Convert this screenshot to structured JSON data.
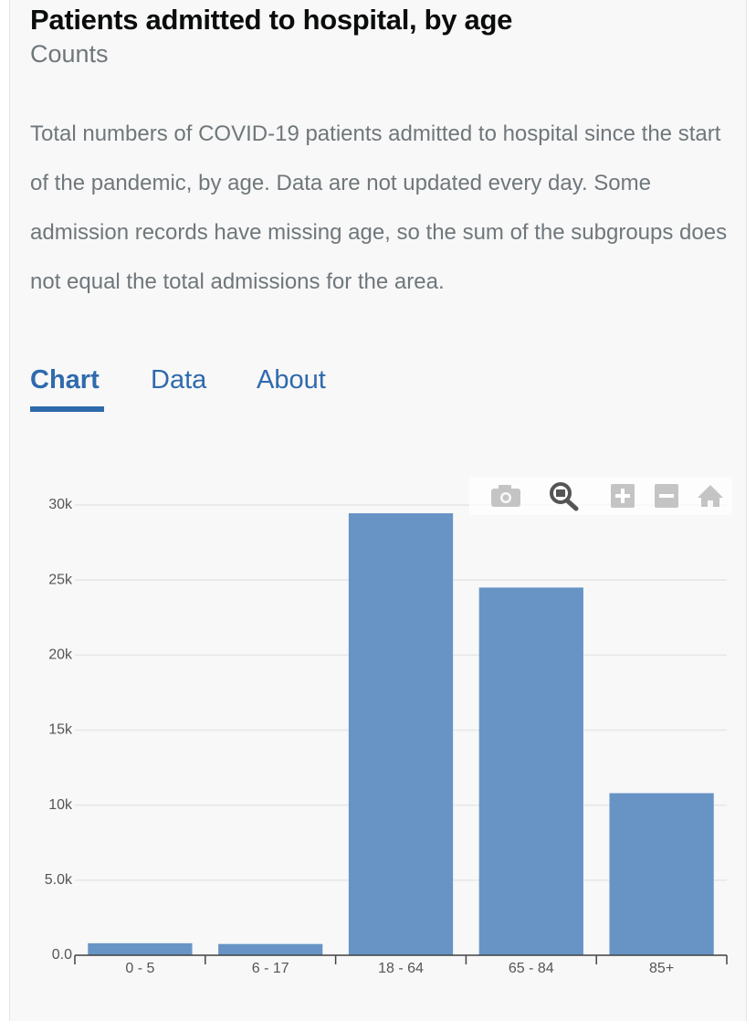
{
  "header": {
    "title": "Patients admitted to hospital, by age",
    "subtitle": "Counts"
  },
  "description": "Total numbers of COVID-19 patients admitted to hospital since the start of the pandemic, by age. Data are not updated every day. Some admission records have missing age, so the sum of the subgroups does not equal the total admissions for the area.",
  "tabs": [
    "Chart",
    "Data",
    "About"
  ],
  "chart_data": {
    "type": "bar",
    "categories": [
      "0 - 5",
      "6 - 17",
      "18 - 64",
      "65 - 84",
      "85+"
    ],
    "values": [
      800,
      750,
      29450,
      24500,
      10800
    ],
    "color": "#6794c5",
    "ylim": [
      0,
      31000
    ],
    "yticks": [
      {
        "value": 0,
        "label": "0.0"
      },
      {
        "value": 5000,
        "label": "5.0k"
      },
      {
        "value": 10000,
        "label": "10k"
      },
      {
        "value": 15000,
        "label": "15k"
      },
      {
        "value": 20000,
        "label": "20k"
      },
      {
        "value": 25000,
        "label": "25k"
      },
      {
        "value": 30000,
        "label": "30k"
      }
    ],
    "grid": true
  }
}
